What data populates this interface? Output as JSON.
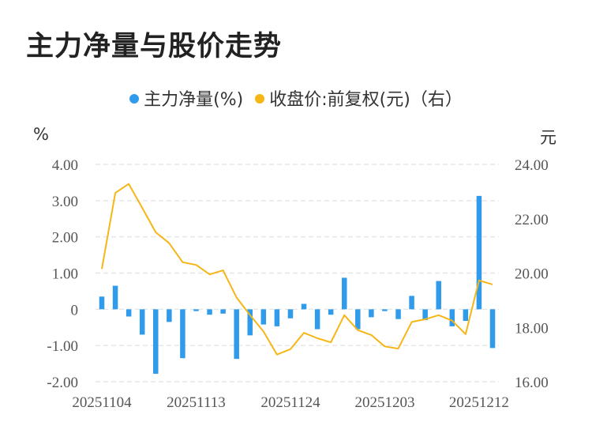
{
  "title": "主力净量与股价走势",
  "legend": {
    "net": "主力净量(%)",
    "price": "收盘价:前复权(元)（右）"
  },
  "colors": {
    "bar": "#2f9bea",
    "line": "#f5b616",
    "grid": "#e6e6e6"
  },
  "chart_data": {
    "type": "bar+line",
    "title": "主力净量与股价走势",
    "ylabel_left": "%",
    "ylabel_right": "元",
    "ylim_left": [
      -2,
      4
    ],
    "ylim_right": [
      16,
      24
    ],
    "yticks_left": [
      "4.00",
      "3.00",
      "2.00",
      "1.00",
      "0",
      "-1.00",
      "-2.00"
    ],
    "yticks_right": [
      "24.00",
      "22.00",
      "20.00",
      "18.00",
      "16.00"
    ],
    "xtick_labels": [
      "20251104",
      "20251113",
      "20251124",
      "20251203",
      "20251212"
    ],
    "xtick_indices": [
      0,
      7,
      14,
      21,
      28
    ],
    "legend_position": "top-center",
    "grid": true,
    "series": [
      {
        "name": "主力净量(%)",
        "type": "bar",
        "axis": "left",
        "values": [
          0.35,
          0.65,
          -0.2,
          -0.7,
          -1.78,
          -0.35,
          -1.35,
          -0.05,
          -0.15,
          -0.12,
          -1.37,
          -0.72,
          -0.42,
          -0.47,
          -0.25,
          0.15,
          -0.55,
          -0.15,
          0.87,
          -0.55,
          -0.22,
          -0.05,
          -0.27,
          0.37,
          -0.3,
          0.78,
          -0.47,
          -0.32,
          3.13,
          -1.07
        ]
      },
      {
        "name": "收盘价:前复权(元)（右）",
        "type": "line",
        "axis": "right",
        "values": [
          20.15,
          22.95,
          23.28,
          22.4,
          21.5,
          21.1,
          20.4,
          20.3,
          19.95,
          20.1,
          19.1,
          18.45,
          17.85,
          17.0,
          17.2,
          17.8,
          17.6,
          17.45,
          18.45,
          17.9,
          17.72,
          17.3,
          17.22,
          18.2,
          18.3,
          18.45,
          18.25,
          17.75,
          19.73,
          19.58
        ]
      }
    ]
  }
}
